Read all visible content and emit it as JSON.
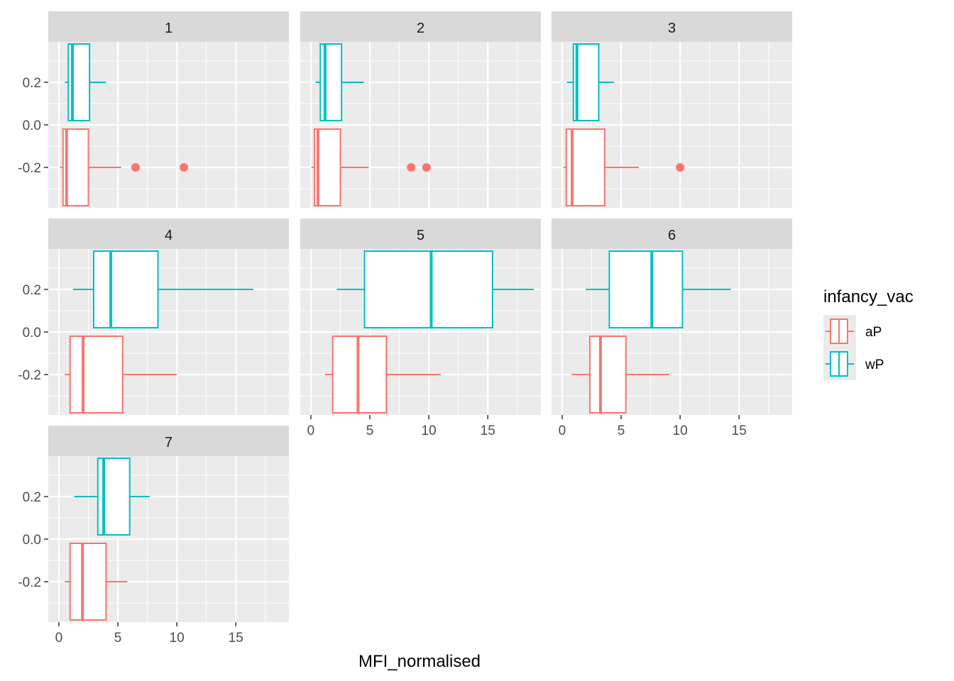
{
  "chart_data": {
    "type": "boxplot",
    "title": "",
    "xlabel": "MFI_normalised",
    "ylabel": "",
    "xlim": [
      -0.9,
      19.5
    ],
    "ylim": [
      -0.39,
      0.39
    ],
    "x_ticks": [
      0,
      5,
      10,
      15
    ],
    "y_ticks": [
      0.2,
      0.0,
      -0.2
    ],
    "x_tick_labels": [
      "0",
      "5",
      "10",
      "15"
    ],
    "y_tick_labels": [
      "0.2",
      "0.0",
      "-0.2"
    ],
    "grid": true,
    "facet_layout": {
      "columns": 3,
      "rows": 3
    },
    "legend": {
      "title": "infancy_vac",
      "position": "right",
      "entries": [
        {
          "name": "aP",
          "color": "#F8766D"
        },
        {
          "name": "wP",
          "color": "#00BFC4"
        }
      ]
    },
    "colors": {
      "aP": "#F8766D",
      "wP": "#00BFC4",
      "panel_bg": "#EBEBEB",
      "strip_bg": "#D9D9D9",
      "grid": "#FFFFFF"
    },
    "box_positions": {
      "wP": 0.2,
      "aP": -0.2
    },
    "facets": [
      {
        "label": "1",
        "boxes": [
          {
            "group": "wP",
            "min": 0.5,
            "q1": 0.8,
            "median": 1.15,
            "q3": 2.6,
            "max": 4.0,
            "outliers": []
          },
          {
            "group": "aP",
            "min": 0.1,
            "q1": 0.35,
            "median": 0.65,
            "q3": 2.5,
            "max": 5.3,
            "outliers": [
              6.5,
              10.6
            ]
          }
        ]
      },
      {
        "label": "2",
        "boxes": [
          {
            "group": "wP",
            "min": 0.4,
            "q1": 0.8,
            "median": 1.2,
            "q3": 2.6,
            "max": 4.5,
            "outliers": []
          },
          {
            "group": "aP",
            "min": 0.05,
            "q1": 0.3,
            "median": 0.6,
            "q3": 2.5,
            "max": 4.9,
            "outliers": [
              8.5,
              9.8
            ]
          }
        ]
      },
      {
        "label": "3",
        "boxes": [
          {
            "group": "wP",
            "min": 0.4,
            "q1": 0.95,
            "median": 1.25,
            "q3": 3.1,
            "max": 4.4,
            "outliers": []
          },
          {
            "group": "aP",
            "min": 0.1,
            "q1": 0.35,
            "median": 0.85,
            "q3": 3.6,
            "max": 6.5,
            "outliers": [
              10.0
            ]
          }
        ]
      },
      {
        "label": "4",
        "boxes": [
          {
            "group": "wP",
            "min": 1.2,
            "q1": 2.95,
            "median": 4.4,
            "q3": 8.4,
            "max": 16.5,
            "outliers": []
          },
          {
            "group": "aP",
            "min": 0.5,
            "q1": 0.95,
            "median": 2.05,
            "q3": 5.4,
            "max": 10.0,
            "outliers": []
          }
        ]
      },
      {
        "label": "5",
        "boxes": [
          {
            "group": "wP",
            "min": 2.2,
            "q1": 4.55,
            "median": 10.2,
            "q3": 15.4,
            "max": 18.9,
            "outliers": []
          },
          {
            "group": "aP",
            "min": 1.2,
            "q1": 1.85,
            "median": 4.0,
            "q3": 6.4,
            "max": 11.0,
            "outliers": []
          }
        ]
      },
      {
        "label": "6",
        "boxes": [
          {
            "group": "wP",
            "min": 2.0,
            "q1": 4.0,
            "median": 7.6,
            "q3": 10.2,
            "max": 14.3,
            "outliers": []
          },
          {
            "group": "aP",
            "min": 0.8,
            "q1": 2.35,
            "median": 3.25,
            "q3": 5.4,
            "max": 9.1,
            "outliers": []
          }
        ]
      },
      {
        "label": "7",
        "boxes": [
          {
            "group": "wP",
            "min": 1.3,
            "q1": 3.3,
            "median": 3.8,
            "q3": 6.0,
            "max": 7.7,
            "outliers": []
          },
          {
            "group": "aP",
            "min": 0.5,
            "q1": 0.95,
            "median": 2.0,
            "q3": 4.0,
            "max": 5.8,
            "outliers": []
          }
        ]
      }
    ]
  }
}
